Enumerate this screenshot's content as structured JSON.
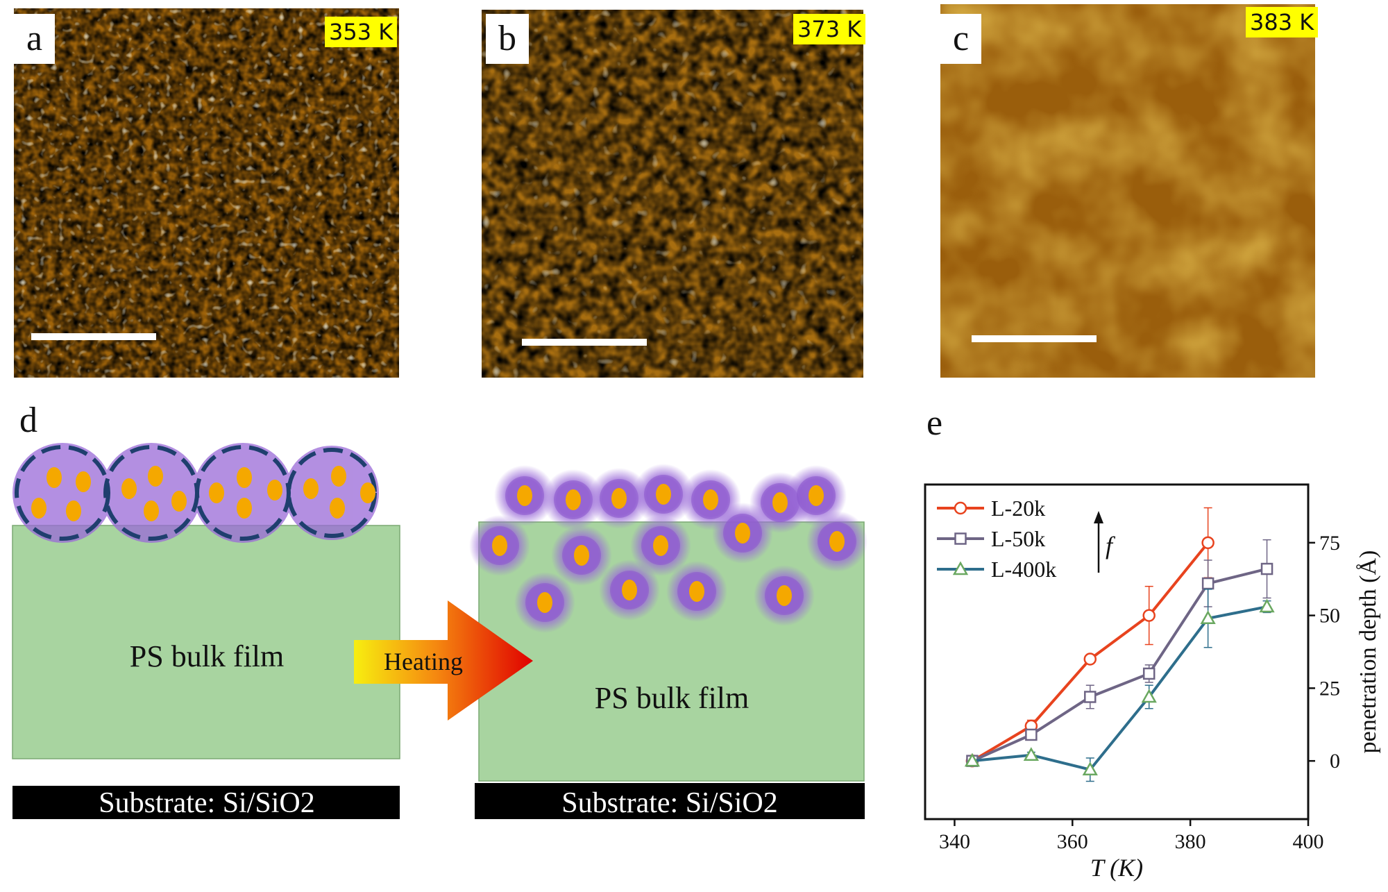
{
  "panels": {
    "a": {
      "letter": "a",
      "temperature": "353 K"
    },
    "b": {
      "letter": "b",
      "temperature": "373 K"
    },
    "c": {
      "letter": "c",
      "temperature": "383 K"
    },
    "d": {
      "letter": "d",
      "film_label_left": "PS bulk film",
      "film_label_right": "PS bulk film",
      "arrow_label": "Heating",
      "substrate_left": "Substrate: Si/SiO2",
      "substrate_right": "Substrate: Si/SiO2"
    },
    "e": {
      "letter": "e"
    }
  },
  "colors": {
    "afm_dark": "#3a1c02",
    "afm_mid": "#a0640a",
    "afm_bright": "#ffffe8",
    "film_green": "#a8d4a0",
    "particle_purple": "#9a6ad8",
    "particle_core": "#f5a800",
    "dashed_ring": "#1f3f6e",
    "L20k": "#e8431e",
    "L50k": "#6e6585",
    "L400k": "#2e6e8c"
  },
  "chart_data": {
    "type": "line",
    "xlabel": "T (K)",
    "ylabel": "penetration depth (Å)",
    "annotation": "f",
    "xlim": [
      335,
      400
    ],
    "ylim": [
      -20,
      95
    ],
    "xticks": [
      340,
      360,
      380,
      400
    ],
    "yticks": [
      0,
      25,
      50,
      75
    ],
    "grid": false,
    "legend_position": "top-left",
    "series": [
      {
        "name": "L-20k",
        "marker": "circle",
        "color": "#e8431e",
        "x": [
          343,
          353,
          363,
          373,
          383
        ],
        "y": [
          0,
          12,
          35,
          50,
          75
        ],
        "err": [
          0,
          2,
          0,
          10,
          12
        ]
      },
      {
        "name": "L-50k",
        "marker": "square",
        "color": "#6e6585",
        "x": [
          343,
          353,
          363,
          373,
          383,
          393
        ],
        "y": [
          0,
          9,
          22,
          30,
          61,
          66
        ],
        "err": [
          0,
          1,
          4,
          3,
          8,
          10
        ]
      },
      {
        "name": "L-400k",
        "marker": "triangle",
        "color": "#2e6e8c",
        "x": [
          343,
          353,
          363,
          373,
          383,
          393
        ],
        "y": [
          0,
          2,
          -3,
          22,
          49,
          53
        ],
        "err": [
          0,
          1,
          4,
          4,
          10,
          2
        ]
      }
    ]
  }
}
